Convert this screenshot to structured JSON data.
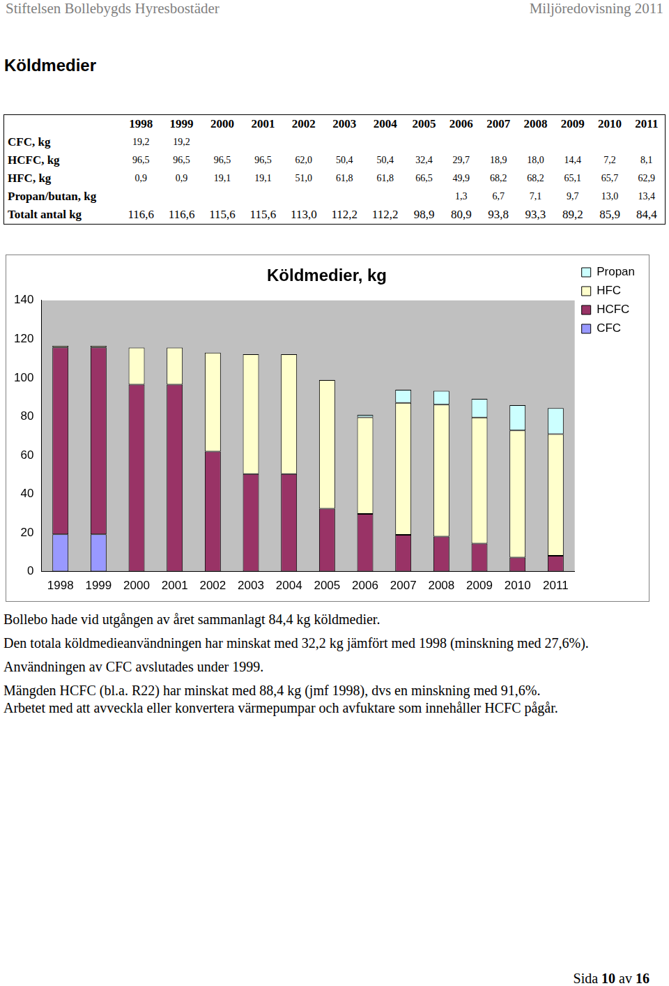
{
  "header": {
    "left": "Stiftelsen Bollebygds Hyresbostäder",
    "right": "Miljöredovisning 2011"
  },
  "title": "Köldmedier",
  "table": {
    "columns": [
      "1998",
      "1999",
      "2000",
      "2001",
      "2002",
      "2003",
      "2004",
      "2005",
      "2006",
      "2007",
      "2008",
      "2009",
      "2010",
      "2011"
    ],
    "rows": [
      {
        "label": "CFC, kg",
        "cells": [
          "19,2",
          "19,2",
          null,
          null,
          null,
          null,
          null,
          null,
          null,
          null,
          null,
          null,
          null,
          null
        ]
      },
      {
        "label": "HCFC, kg",
        "cells": [
          "96,5",
          "96,5",
          "96,5",
          "96,5",
          "62,0",
          "50,4",
          "50,4",
          "32,4",
          "29,7",
          "18,9",
          "18,0",
          "14,4",
          "7,2",
          "8,1"
        ]
      },
      {
        "label": "HFC, kg",
        "cells": [
          "0,9",
          "0,9",
          "19,1",
          "19,1",
          "51,0",
          "61,8",
          "61,8",
          "66,5",
          "49,9",
          "68,2",
          "68,2",
          "65,1",
          "65,7",
          "62,9"
        ]
      },
      {
        "label": "Propan/butan, kg",
        "cells": [
          null,
          null,
          null,
          null,
          null,
          null,
          null,
          null,
          "1,3",
          "6,7",
          "7,1",
          "9,7",
          "13,0",
          "13,4"
        ]
      },
      {
        "label": "Totalt antal kg",
        "cells": [
          "116,6",
          "116,6",
          "115,6",
          "115,6",
          "113,0",
          "112,2",
          "112,2",
          "98,9",
          "80,9",
          "93,8",
          "93,3",
          "89,2",
          "85,9",
          "84,4"
        ]
      }
    ]
  },
  "chart_data": {
    "type": "bar",
    "title": "Köldmedier, kg",
    "categories": [
      "1998",
      "1999",
      "2000",
      "2001",
      "2002",
      "2003",
      "2004",
      "2005",
      "2006",
      "2007",
      "2008",
      "2009",
      "2010",
      "2011"
    ],
    "series": [
      {
        "name": "CFC",
        "color": "#9999ff",
        "values": [
          19.2,
          19.2,
          null,
          null,
          null,
          null,
          null,
          null,
          null,
          null,
          null,
          null,
          null,
          null
        ]
      },
      {
        "name": "HCFC",
        "color": "#993366",
        "values": [
          96.5,
          96.5,
          96.5,
          96.5,
          62.0,
          50.4,
          50.4,
          32.4,
          29.7,
          18.9,
          18.0,
          14.4,
          7.2,
          8.1
        ]
      },
      {
        "name": "HFC",
        "color": "#ffffcc",
        "values": [
          0.9,
          0.9,
          19.1,
          19.1,
          51.0,
          61.8,
          61.8,
          66.5,
          49.9,
          68.2,
          68.2,
          65.1,
          65.7,
          62.9
        ]
      },
      {
        "name": "Propan",
        "color": "#ccffff",
        "values": [
          null,
          null,
          null,
          null,
          null,
          null,
          null,
          null,
          1.3,
          6.7,
          7.1,
          9.7,
          13.0,
          13.4
        ]
      }
    ],
    "stacked": true,
    "ylim": [
      0,
      140
    ],
    "yticks": [
      0,
      20,
      40,
      60,
      80,
      100,
      120,
      140
    ],
    "grid": false,
    "legend": "right"
  },
  "paragraphs": [
    [
      "Bollebo hade vid utgången av året sammanlagt 84,4 kg köldmedier."
    ],
    [
      "Den totala köldmedieanvändningen har minskat med 32,2 kg jämfört med 1998 (minskning med 27,6%)."
    ],
    [
      "Användningen av CFC avslutades under 1999."
    ],
    [
      "Mängden HCFC (bl.a. R22) har minskat med 88,4 kg (jmf 1998), dvs en minskning med 91,6%.",
      "Arbetet med att avveckla eller konvertera värmepumpar och avfuktare som innehåller HCFC pågår."
    ]
  ],
  "footer": {
    "label": "Sida",
    "page": 10,
    "of": "av",
    "pages": 16
  }
}
